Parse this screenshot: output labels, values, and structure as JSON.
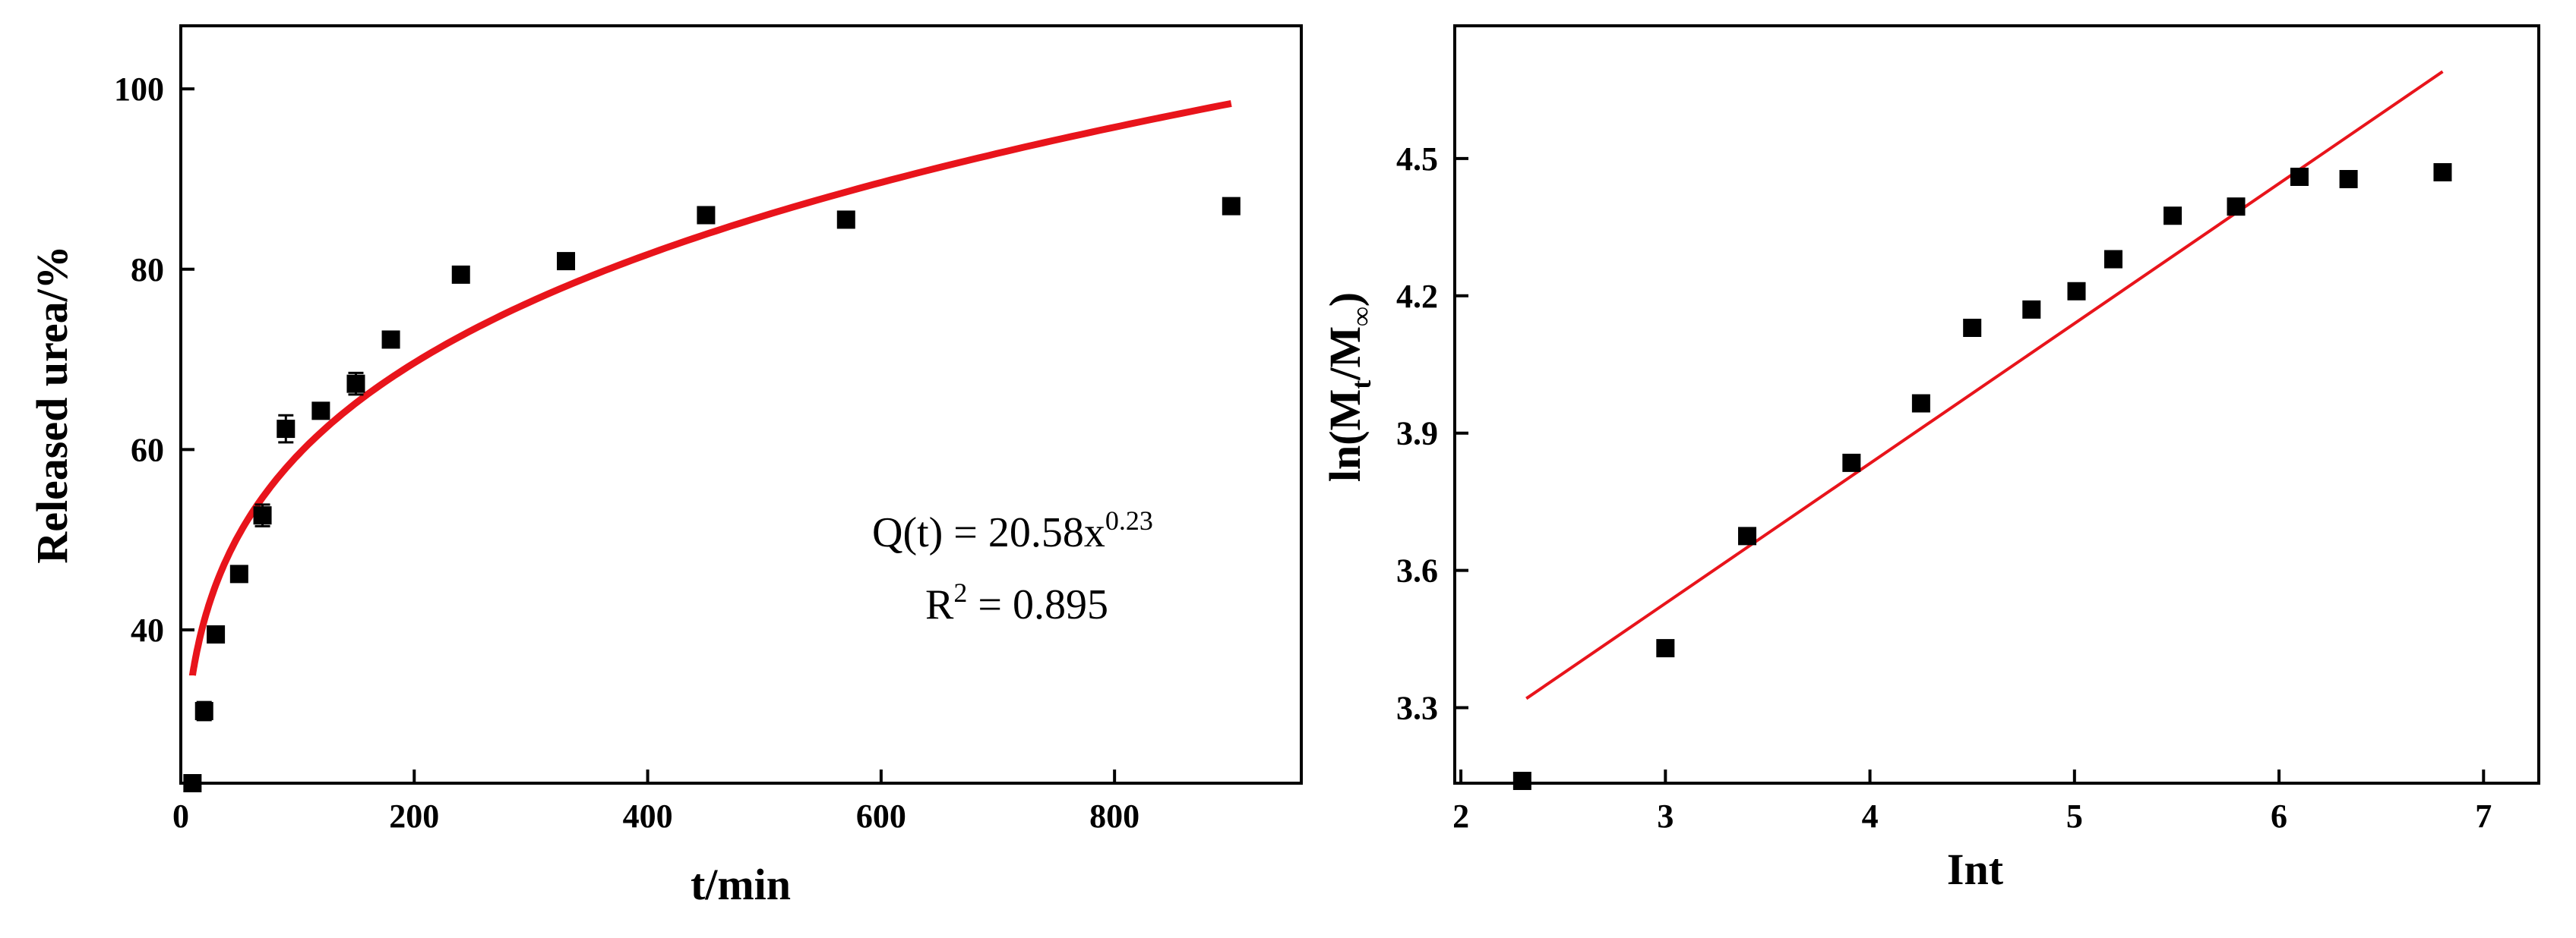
{
  "chart_data": [
    {
      "type": "scatter",
      "xlabel": "t/min",
      "ylabel": "Released urea/%",
      "xlim": [
        0,
        960
      ],
      "ylim": [
        23,
        107
      ],
      "xticks": [
        "0",
        "200",
        "400",
        "600",
        "800"
      ],
      "yticks": [
        "40",
        "60",
        "80",
        "100"
      ],
      "xtick_values": [
        0,
        200,
        400,
        600,
        800
      ],
      "ytick_values": [
        40,
        60,
        80,
        100
      ],
      "points": [
        {
          "x": 10,
          "y": 23,
          "err": 0
        },
        {
          "x": 20,
          "y": 31,
          "err": 1
        },
        {
          "x": 30,
          "y": 39.5,
          "err": 0.8
        },
        {
          "x": 50,
          "y": 46.2,
          "err": 0.6
        },
        {
          "x": 70,
          "y": 52.7,
          "err": 1.2
        },
        {
          "x": 90,
          "y": 62.3,
          "err": 1.5
        },
        {
          "x": 120,
          "y": 64.3,
          "err": 0.8
        },
        {
          "x": 150,
          "y": 67.3,
          "err": 1.2
        },
        {
          "x": 180,
          "y": 72.2,
          "err": 0.5
        },
        {
          "x": 240,
          "y": 79.4,
          "err": 0.4
        },
        {
          "x": 330,
          "y": 80.9,
          "err": 0.4
        },
        {
          "x": 450,
          "y": 86,
          "err": 0.5
        },
        {
          "x": 570,
          "y": 85.5,
          "err": 0.4
        },
        {
          "x": 900,
          "y": 87,
          "err": 0.4
        }
      ],
      "fit": {
        "coef": 20.58,
        "exp": 0.23,
        "x_start": 10,
        "x_end": 900,
        "color": "#e8141b"
      },
      "annotation": {
        "line1_main": "Q(t) = 20.58x",
        "line1_sup": "0.23",
        "line2_main": "R",
        "line2_sup": "2",
        "line2_rest": " = 0.895"
      },
      "point_color": "#000000"
    },
    {
      "type": "scatter",
      "xlabel": "Int",
      "ylabel_main": "ln(M",
      "ylabel_sub1": "t",
      "ylabel_mid": "/M",
      "ylabel_sub2": "∞",
      "ylabel_end": ")",
      "xlim": [
        1.97,
        7.27
      ],
      "ylim": [
        3.135,
        4.79
      ],
      "xticks": [
        "2",
        "3",
        "4",
        "5",
        "6",
        "7"
      ],
      "yticks": [
        "3.3",
        "3.6",
        "3.9",
        "4.2",
        "4.5"
      ],
      "xtick_values": [
        2,
        3,
        4,
        5,
        6,
        7
      ],
      "ytick_values": [
        3.3,
        3.6,
        3.9,
        4.2,
        4.5
      ],
      "points": [
        {
          "x": 2.3,
          "y": 3.14
        },
        {
          "x": 3.0,
          "y": 3.43
        },
        {
          "x": 3.4,
          "y": 3.675
        },
        {
          "x": 3.91,
          "y": 3.835
        },
        {
          "x": 4.25,
          "y": 3.965
        },
        {
          "x": 4.5,
          "y": 4.13
        },
        {
          "x": 4.79,
          "y": 4.17
        },
        {
          "x": 5.01,
          "y": 4.21
        },
        {
          "x": 5.19,
          "y": 4.28
        },
        {
          "x": 5.48,
          "y": 4.375
        },
        {
          "x": 5.79,
          "y": 4.395
        },
        {
          "x": 6.1,
          "y": 4.46
        },
        {
          "x": 6.34,
          "y": 4.455
        },
        {
          "x": 6.8,
          "y": 4.47
        }
      ],
      "fit": {
        "x_start": 2.32,
        "y_start": 3.32,
        "x_end": 6.8,
        "y_end": 4.69,
        "color": "#e8141b"
      },
      "point_color": "#000000"
    }
  ]
}
